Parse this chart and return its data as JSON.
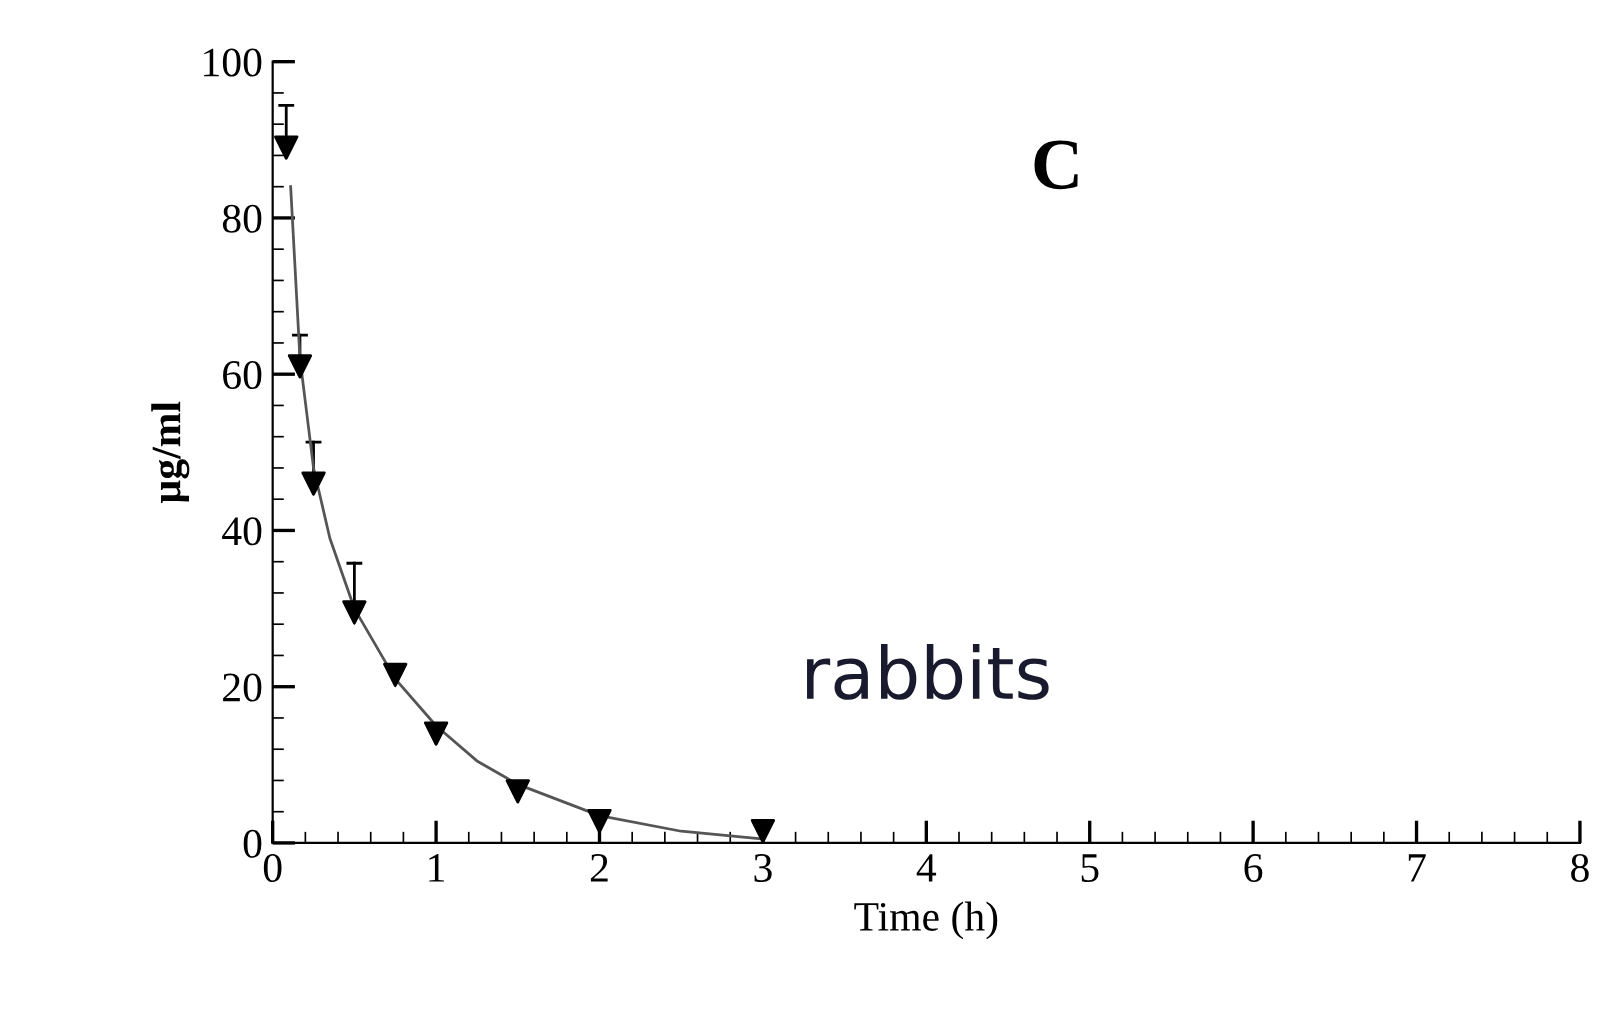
{
  "chart_data": {
    "type": "scatter",
    "xlabel": "Time (h)",
    "ylabel": "µg/ml",
    "annotations": [
      "C",
      "rabbits"
    ],
    "xlim": [
      0,
      8
    ],
    "xticks": [
      0,
      1,
      2,
      3,
      4,
      5,
      6,
      7,
      8
    ],
    "ylim": [
      0,
      100
    ],
    "yticks": [
      0,
      20,
      40,
      60,
      80,
      100
    ],
    "grid": false,
    "series": [
      {
        "marker": "triangle",
        "color": "#000000",
        "x": [
          0.083,
          0.167,
          0.25,
          0.5,
          0.75,
          1,
          1.5,
          2,
          3
        ],
        "values": [
          89,
          61,
          46,
          29.5,
          21.5,
          14,
          6.6,
          2.8,
          1.5
        ],
        "errors": [
          [
            89,
            94.4
          ],
          [
            61,
            65
          ],
          [
            46,
            51.3
          ],
          [
            29.5,
            35.8
          ],
          null,
          null,
          null,
          null,
          null
        ]
      },
      {
        "type": "line",
        "marker": "none",
        "color": "#555555",
        "line_style": "solid",
        "x": [
          0.11,
          0.167,
          0.25,
          0.35,
          0.5,
          0.75,
          1,
          1.25,
          1.5,
          2,
          2.5,
          3
        ],
        "values": [
          84,
          62,
          48,
          39,
          30,
          21,
          15,
          10.5,
          7.5,
          3.5,
          1.5,
          0.5
        ]
      }
    ]
  }
}
